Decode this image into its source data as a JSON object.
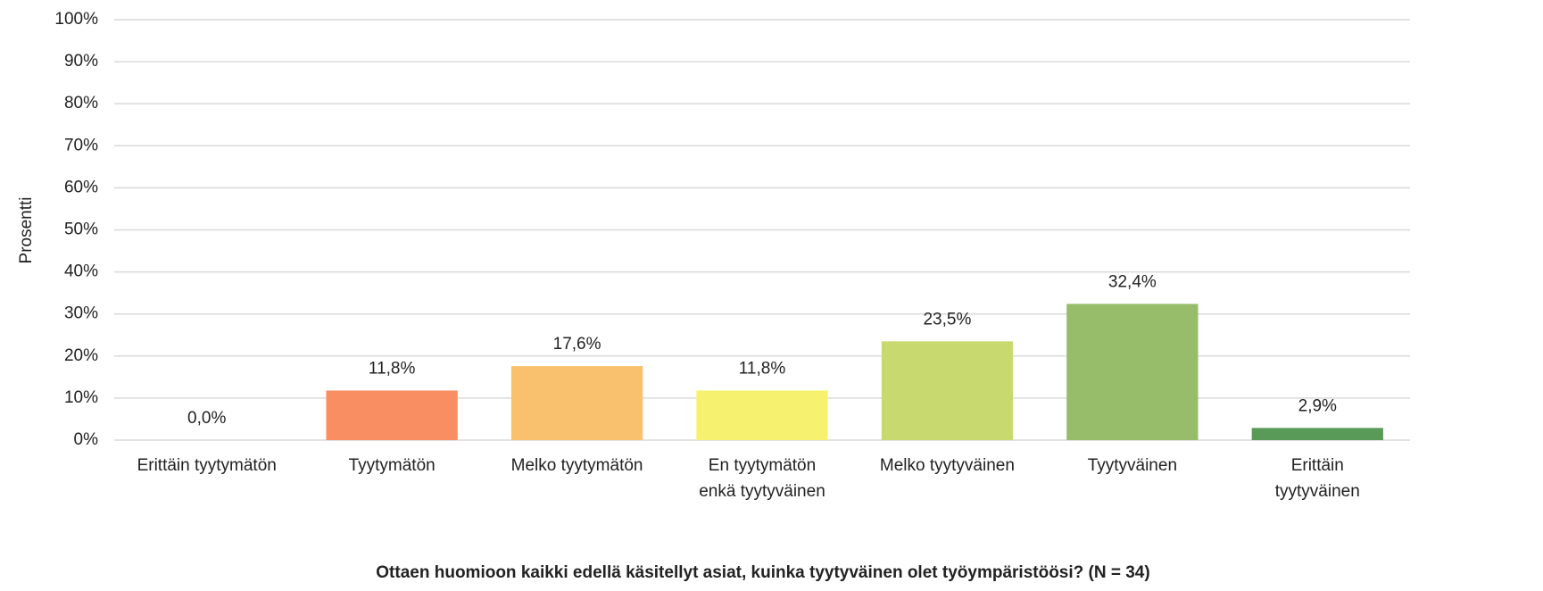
{
  "chart_data": {
    "type": "bar",
    "x_label": "Ottaen huomioon kaikki edellä käsitellyt asiat, kuinka tyytyväinen olet työympäristöösi? (N = 34)",
    "y_label": "Prosentti",
    "categories": [
      "Erittäin tyytymätön",
      "Tyytymätön",
      "Melko tyytymätön",
      "En tyytymätön\nenkä tyytyväinen",
      "Melko tyytyväinen",
      "Tyytyväinen",
      "Erittäin\ntyytyväinen"
    ],
    "values": [
      0,
      11.8,
      17.6,
      11.8,
      23.5,
      32.4,
      2.9
    ],
    "value_labels": [
      "0,0%",
      "11,8%",
      "17,6%",
      "11,8%",
      "23,5%",
      "32,4%",
      "2,9%"
    ],
    "colors": [
      "#e05a3a",
      "#f98e63",
      "#f9c06d",
      "#f6f26f",
      "#c8d96f",
      "#97bc6a",
      "#5a9a58"
    ],
    "ylim": [
      0,
      100
    ],
    "yticks": [
      {
        "value": 0,
        "label": "0%"
      },
      {
        "value": 10,
        "label": "10%"
      },
      {
        "value": 20,
        "label": "20%"
      },
      {
        "value": 30,
        "label": "30%"
      },
      {
        "value": 40,
        "label": "40%"
      },
      {
        "value": 50,
        "label": "50%"
      },
      {
        "value": 60,
        "label": "60%"
      },
      {
        "value": 70,
        "label": "70%"
      },
      {
        "value": 80,
        "label": "80%"
      },
      {
        "value": 90,
        "label": "90%"
      },
      {
        "value": 100,
        "label": "100%"
      }
    ],
    "grid": true
  }
}
